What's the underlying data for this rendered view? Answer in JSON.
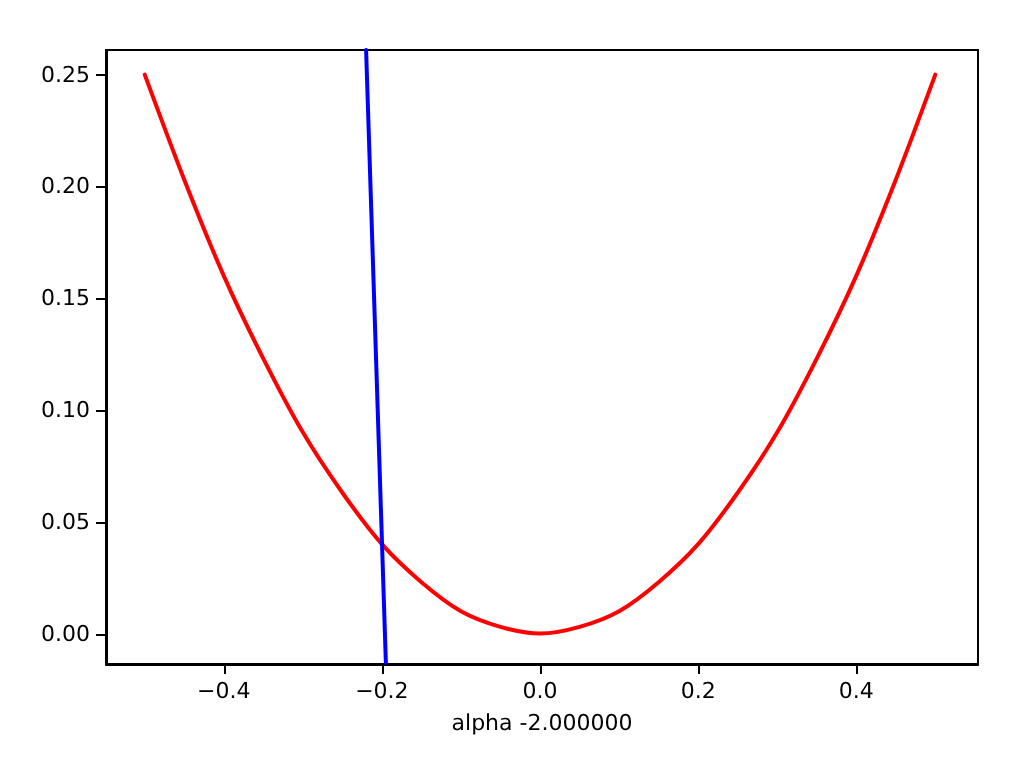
{
  "chart_data": {
    "type": "line",
    "xlabel": "alpha -2.000000",
    "series": [
      {
        "color": "#ff0000",
        "x": [
          -0.5,
          -0.45,
          -0.4,
          -0.35,
          -0.3,
          -0.25,
          -0.2,
          -0.15,
          -0.1,
          -0.05,
          0,
          0.05,
          0.1,
          0.15,
          0.2,
          0.25,
          0.3,
          0.35,
          0.4,
          0.45,
          0.5
        ],
        "values": [
          0.25,
          0.203,
          0.16,
          0.123,
          0.09,
          0.063,
          0.04,
          0.023,
          0.01,
          0.003,
          0,
          0.003,
          0.01,
          0.023,
          0.04,
          0.063,
          0.09,
          0.123,
          0.16,
          0.203,
          0.25
        ]
      },
      {
        "color": "#0000ff",
        "x": [
          -0.22,
          -0.195
        ],
        "values": [
          0.261,
          -0.013
        ]
      }
    ],
    "xlim": [
      -0.549,
      0.554
    ],
    "ylim": [
      -0.0136,
      0.261
    ],
    "xticks": [
      {
        "value": -0.4,
        "label": "−0.4"
      },
      {
        "value": -0.2,
        "label": "−0.2"
      },
      {
        "value": 0,
        "label": "0.0"
      },
      {
        "value": 0.2,
        "label": "0.2"
      },
      {
        "value": 0.4,
        "label": "0.4"
      }
    ],
    "yticks": [
      {
        "value": 0,
        "label": "0.00"
      },
      {
        "value": 0.05,
        "label": "0.05"
      },
      {
        "value": 0.1,
        "label": "0.10"
      },
      {
        "value": 0.15,
        "label": "0.15"
      },
      {
        "value": 0.2,
        "label": "0.20"
      },
      {
        "value": 0.25,
        "label": "0.25"
      }
    ],
    "grid": false,
    "marker": "none",
    "line_style": "solid"
  }
}
